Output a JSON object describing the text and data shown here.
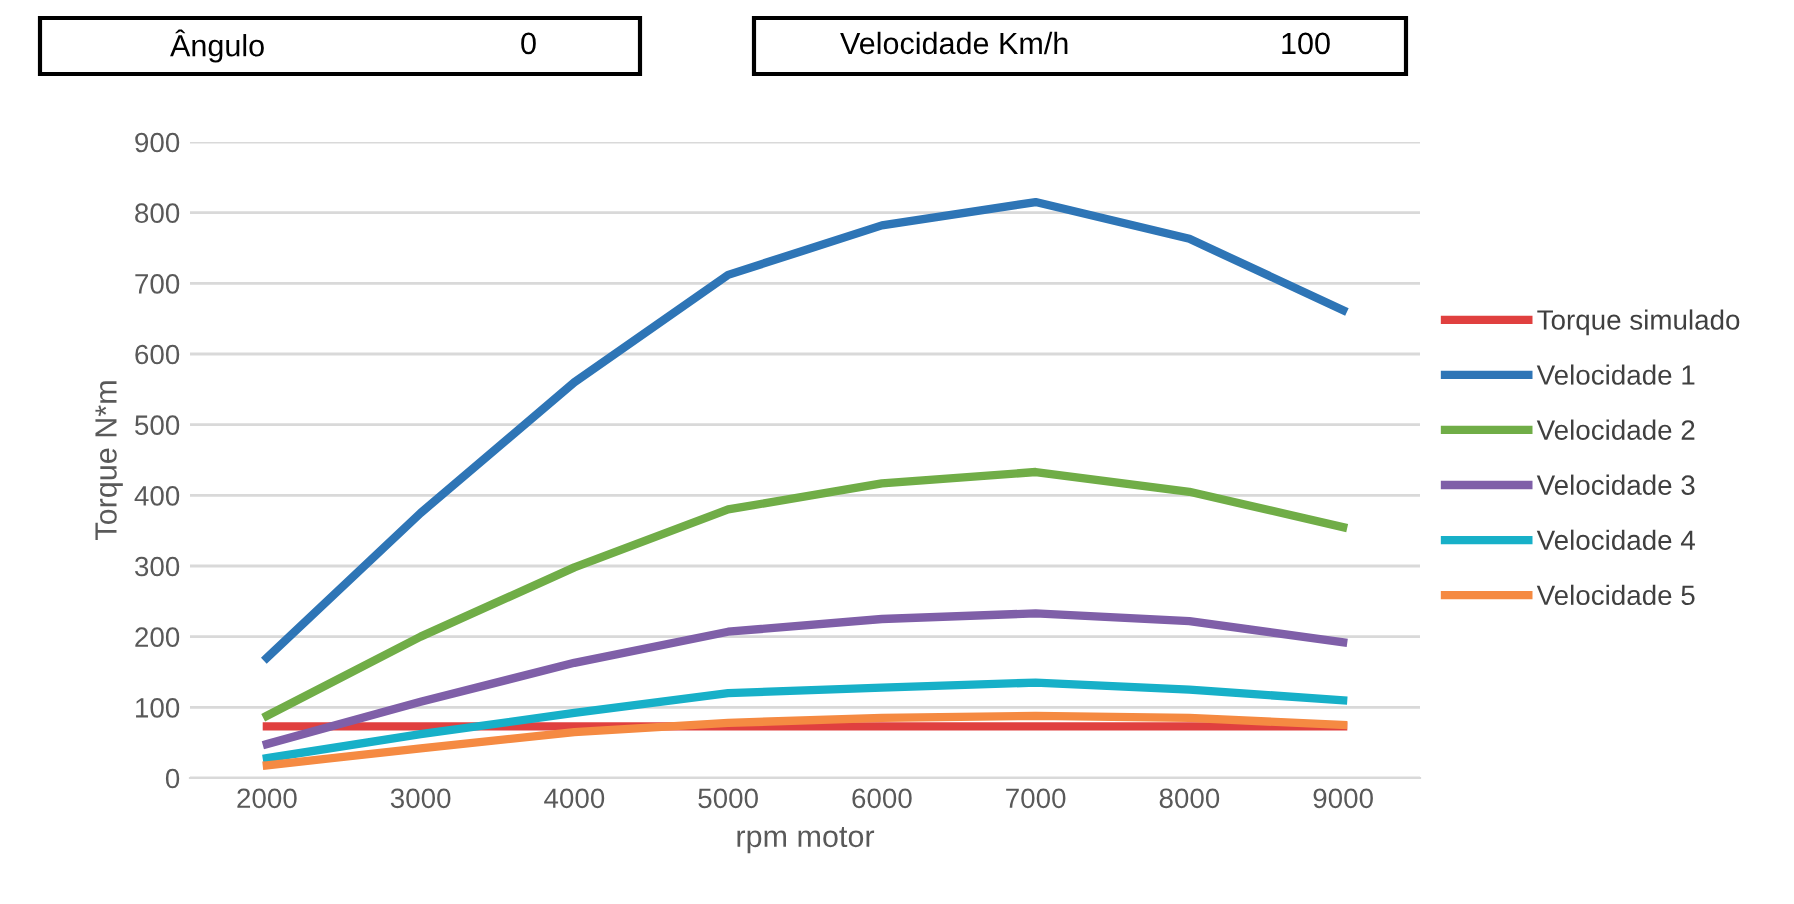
{
  "chart_data": {
    "type": "line",
    "xlabel": "rpm motor",
    "ylabel": "Torque N*m",
    "annotations": [
      "Ângulo",
      "0",
      "Velocidade Km/h",
      "100"
    ],
    "categories": [
      "2000",
      "3000",
      "4000",
      "5000",
      "6000",
      "7000",
      "8000",
      "9000"
    ],
    "ylim": [
      0,
      900
    ],
    "yticks": [
      0,
      100,
      200,
      300,
      400,
      500,
      600,
      700,
      800,
      900
    ],
    "grid": "y",
    "legend": "right",
    "marker": "none",
    "line_style": "solid",
    "series": [
      {
        "name": "Torque simulado",
        "color": "#e0403f",
        "values": [
          73,
          73,
          73,
          73,
          73,
          73,
          73,
          73
        ]
      },
      {
        "name": "Velocidade 1",
        "color": "#2e75b6",
        "values": [
          170,
          375,
          560,
          712,
          782,
          815,
          763,
          662
        ]
      },
      {
        "name": "Velocidade 2",
        "color": "#70ad47",
        "values": [
          88,
          200,
          298,
          380,
          417,
          433,
          405,
          355
        ]
      },
      {
        "name": "Velocidade 3",
        "color": "#7f5fa8",
        "values": [
          48,
          108,
          163,
          207,
          225,
          233,
          222,
          192
        ]
      },
      {
        "name": "Velocidade 4",
        "color": "#17b0c8",
        "values": [
          28,
          62,
          92,
          120,
          128,
          135,
          125,
          110
        ]
      },
      {
        "name": "Velocidade 5",
        "color": "#f58a42",
        "values": [
          18,
          42,
          65,
          78,
          85,
          88,
          85,
          75
        ]
      }
    ]
  }
}
